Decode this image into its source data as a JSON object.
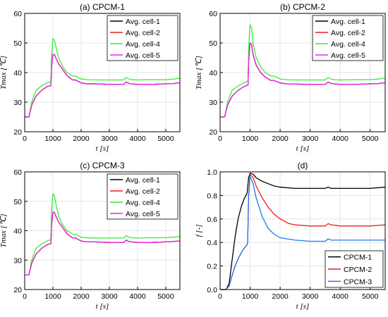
{
  "colors": {
    "black": "#000000",
    "red": "#ee1c1c",
    "green": "#33ee33",
    "magenta": "#ee22ee",
    "blue": "#2277ee"
  },
  "chart_data": [
    {
      "type": "line",
      "title": "(a) CPCM-1",
      "xlabel": "t [s]",
      "ylabel": "Tmax [℃]",
      "xlim": [
        0,
        5500
      ],
      "ylim": [
        20,
        60
      ],
      "xticks": [
        0,
        1000,
        2000,
        3000,
        4000,
        5000
      ],
      "yticks": [
        20,
        30,
        40,
        50,
        60
      ],
      "grid": true,
      "legend_position": "top-right",
      "x": [
        0,
        100,
        150,
        250,
        400,
        600,
        800,
        930,
        950,
        1000,
        1050,
        1100,
        1200,
        1350,
        1500,
        1700,
        1800,
        2000,
        2200,
        2500,
        3000,
        3500,
        3600,
        3700,
        3800,
        4000,
        4500,
        5000,
        5300,
        5400,
        5500
      ],
      "series": [
        {
          "name": "Avg. cell-1",
          "color": "black",
          "values": [
            25,
            25,
            25,
            29,
            32,
            34,
            35.3,
            35.6,
            42,
            46,
            46.1,
            45,
            43,
            41,
            39,
            37.5,
            37.5,
            36.5,
            36.2,
            36.2,
            36,
            36,
            36.8,
            36.3,
            36.2,
            36,
            36,
            36.2,
            36.3,
            36.5,
            36.5
          ]
        },
        {
          "name": "Avg. cell-2",
          "color": "red",
          "values": [
            25,
            25,
            25,
            29,
            32,
            34,
            35.3,
            35.6,
            42,
            46,
            46.1,
            45,
            43,
            41,
            39,
            37.5,
            37.5,
            36.5,
            36.2,
            36.2,
            36,
            36,
            36.8,
            36.3,
            36.2,
            36,
            36,
            36.2,
            36.3,
            36.5,
            36.5
          ]
        },
        {
          "name": "Avg. cell-4",
          "color": "green",
          "values": [
            25,
            25,
            25,
            30,
            34,
            35.5,
            36.5,
            37,
            45,
            51.5,
            51,
            49,
            45,
            42,
            40,
            38.8,
            38.8,
            37.8,
            37.6,
            37.5,
            37.5,
            37.5,
            38.3,
            37.8,
            37.6,
            37.5,
            37.6,
            37.6,
            37.8,
            38,
            38
          ]
        },
        {
          "name": "Avg. cell-5",
          "color": "magenta",
          "values": [
            25,
            25,
            25,
            29,
            32,
            34,
            35.3,
            35.6,
            42,
            46,
            46.1,
            45,
            43,
            41,
            39,
            37.5,
            37.5,
            36.5,
            36.2,
            36.2,
            36,
            36,
            36.8,
            36.3,
            36.2,
            36,
            36,
            36.2,
            36.3,
            36.5,
            36.5
          ]
        }
      ]
    },
    {
      "type": "line",
      "title": "(b) CPCM-2",
      "xlabel": "t [s]",
      "ylabel": "Tmax [℃]",
      "xlim": [
        0,
        5500
      ],
      "ylim": [
        20,
        60
      ],
      "xticks": [
        0,
        1000,
        2000,
        3000,
        4000,
        5000
      ],
      "yticks": [
        20,
        30,
        40,
        50,
        60
      ],
      "grid": true,
      "legend_position": "top-right",
      "x": [
        0,
        100,
        150,
        250,
        400,
        600,
        800,
        930,
        950,
        1000,
        1050,
        1100,
        1200,
        1350,
        1500,
        1700,
        1800,
        2000,
        2200,
        2500,
        3000,
        3500,
        3600,
        3700,
        3800,
        4000,
        4500,
        5000,
        5300,
        5400,
        5500
      ],
      "series": [
        {
          "name": "Avg. cell-1",
          "color": "black",
          "values": [
            25,
            25,
            25,
            29,
            32,
            34,
            35.3,
            35.8,
            44,
            50,
            49.5,
            46,
            42.5,
            40,
            38.5,
            37.3,
            37.3,
            36.5,
            36.2,
            36.1,
            36,
            36,
            36.8,
            36.3,
            36.2,
            36,
            36,
            36.2,
            36.3,
            36.5,
            36.5
          ]
        },
        {
          "name": "Avg. cell-2",
          "color": "red",
          "values": [
            25,
            25,
            25,
            29,
            32,
            34,
            35.3,
            35.8,
            44,
            50,
            49.5,
            46,
            42.5,
            40,
            38.5,
            37.3,
            37.3,
            36.5,
            36.2,
            36.1,
            36,
            36,
            36.8,
            36.3,
            36.2,
            36,
            36,
            36.2,
            36.3,
            36.5,
            36.5
          ]
        },
        {
          "name": "Avg. cell-4",
          "color": "green",
          "values": [
            25,
            25,
            25,
            30,
            34,
            35.5,
            36.5,
            37.2,
            48,
            56.2,
            55,
            50,
            45,
            42,
            40,
            38.8,
            38.8,
            37.8,
            37.6,
            37.5,
            37.5,
            37.5,
            38.3,
            37.8,
            37.6,
            37.5,
            37.6,
            37.6,
            37.8,
            38,
            38
          ]
        },
        {
          "name": "Avg. cell-5",
          "color": "magenta",
          "values": [
            25,
            25,
            25,
            29,
            32,
            34,
            35.3,
            35.8,
            44,
            50,
            49.5,
            46,
            42.5,
            40,
            38.5,
            37.3,
            37.3,
            36.5,
            36.2,
            36.1,
            36,
            36,
            36.8,
            36.3,
            36.2,
            36,
            36,
            36.2,
            36.3,
            36.5,
            36.5
          ]
        }
      ]
    },
    {
      "type": "line",
      "title": "(c) CPCM-3",
      "xlabel": "t [s]",
      "ylabel": "Tmax [℃]",
      "xlim": [
        0,
        5500
      ],
      "ylim": [
        20,
        60
      ],
      "xticks": [
        0,
        1000,
        2000,
        3000,
        4000,
        5000
      ],
      "yticks": [
        20,
        30,
        40,
        50,
        60
      ],
      "grid": true,
      "legend_position": "top-right",
      "x": [
        0,
        100,
        150,
        250,
        400,
        600,
        800,
        930,
        950,
        1000,
        1050,
        1100,
        1200,
        1350,
        1500,
        1700,
        1800,
        2000,
        2200,
        2500,
        3000,
        3500,
        3600,
        3700,
        3800,
        4000,
        4500,
        5000,
        5300,
        5400,
        5500
      ],
      "series": [
        {
          "name": "Avg. cell-1",
          "color": "black",
          "values": [
            25,
            25,
            25,
            29,
            32,
            34,
            35.3,
            35.6,
            42,
            46.3,
            46.3,
            45,
            43,
            41,
            39,
            37.5,
            37.5,
            36.5,
            36.2,
            36.2,
            36,
            36,
            36.8,
            36.3,
            36.2,
            36,
            36,
            36.2,
            36.3,
            36.5,
            36.5
          ]
        },
        {
          "name": "Avg. cell-2",
          "color": "red",
          "values": [
            25,
            25,
            25,
            29,
            32,
            34,
            35.3,
            35.6,
            42,
            46.3,
            46.3,
            45,
            43,
            41,
            39,
            37.5,
            37.5,
            36.5,
            36.2,
            36.2,
            36,
            36,
            36.8,
            36.3,
            36.2,
            36,
            36,
            36.2,
            36.3,
            36.5,
            36.5
          ]
        },
        {
          "name": "Avg. cell-4",
          "color": "green",
          "values": [
            25,
            25,
            25,
            30,
            34,
            35.5,
            36.5,
            37,
            46,
            52.5,
            52,
            49.5,
            45,
            42,
            40,
            38.8,
            38.8,
            37.8,
            37.6,
            37.5,
            37.5,
            37.5,
            38.3,
            37.8,
            37.6,
            37.5,
            37.6,
            37.6,
            37.8,
            38,
            38
          ]
        },
        {
          "name": "Avg. cell-5",
          "color": "magenta",
          "values": [
            25,
            25,
            25,
            29,
            32,
            34,
            35.3,
            35.6,
            42,
            46.3,
            46.3,
            45,
            43,
            41,
            39,
            37.5,
            37.5,
            36.5,
            36.2,
            36.2,
            36,
            36,
            36.8,
            36.3,
            36.2,
            36,
            36,
            36.2,
            36.3,
            36.5,
            36.5
          ]
        }
      ]
    },
    {
      "type": "line",
      "title": "(d)",
      "xlabel": "t [s]",
      "ylabel": "f [-]",
      "xlim": [
        0,
        5500
      ],
      "ylim": [
        0,
        1.0
      ],
      "xticks": [
        0,
        1000,
        2000,
        3000,
        4000,
        5000
      ],
      "yticks": [
        0.0,
        0.2,
        0.4,
        0.6,
        0.8,
        1.0
      ],
      "grid": true,
      "legend_position": "bottom-right",
      "series": [
        {
          "name": "CPCM-1",
          "color": "black",
          "x": [
            0,
            200,
            300,
            400,
            500,
            600,
            700,
            800,
            900,
            950,
            1000,
            1100,
            1200,
            1400,
            1600,
            1700,
            1800,
            2000,
            2500,
            3000,
            3500,
            3600,
            3700,
            4000,
            4500,
            5000,
            5500
          ],
          "values": [
            0,
            0,
            0.05,
            0.25,
            0.45,
            0.6,
            0.7,
            0.77,
            0.82,
            0.95,
            0.99,
            0.98,
            0.95,
            0.92,
            0.9,
            0.89,
            0.88,
            0.87,
            0.86,
            0.86,
            0.86,
            0.87,
            0.86,
            0.86,
            0.86,
            0.86,
            0.87
          ]
        },
        {
          "name": "CPCM-2",
          "color": "red",
          "x": [
            0,
            200,
            300,
            400,
            500,
            600,
            700,
            800,
            900,
            920,
            950,
            1000,
            1100,
            1200,
            1400,
            1600,
            1800,
            2000,
            2300,
            2500,
            3000,
            3500,
            3600,
            3700,
            4000,
            4500,
            5000,
            5500
          ],
          "values": [
            0,
            0,
            0.03,
            0.12,
            0.2,
            0.26,
            0.31,
            0.35,
            0.38,
            0.4,
            0.8,
            0.98,
            0.95,
            0.88,
            0.78,
            0.7,
            0.64,
            0.6,
            0.56,
            0.55,
            0.54,
            0.54,
            0.56,
            0.55,
            0.54,
            0.54,
            0.54,
            0.55
          ]
        },
        {
          "name": "CPCM-3",
          "color": "blue",
          "x": [
            0,
            200,
            300,
            400,
            500,
            600,
            700,
            800,
            900,
            920,
            950,
            1000,
            1100,
            1200,
            1400,
            1600,
            1800,
            2000,
            2500,
            3000,
            3500,
            3600,
            3700,
            4000,
            4500,
            5000,
            5500
          ],
          "values": [
            0,
            0,
            0.03,
            0.12,
            0.2,
            0.26,
            0.31,
            0.35,
            0.38,
            0.4,
            0.8,
            0.96,
            0.9,
            0.78,
            0.62,
            0.52,
            0.47,
            0.44,
            0.42,
            0.41,
            0.41,
            0.43,
            0.42,
            0.42,
            0.42,
            0.42,
            0.42
          ]
        }
      ]
    }
  ]
}
